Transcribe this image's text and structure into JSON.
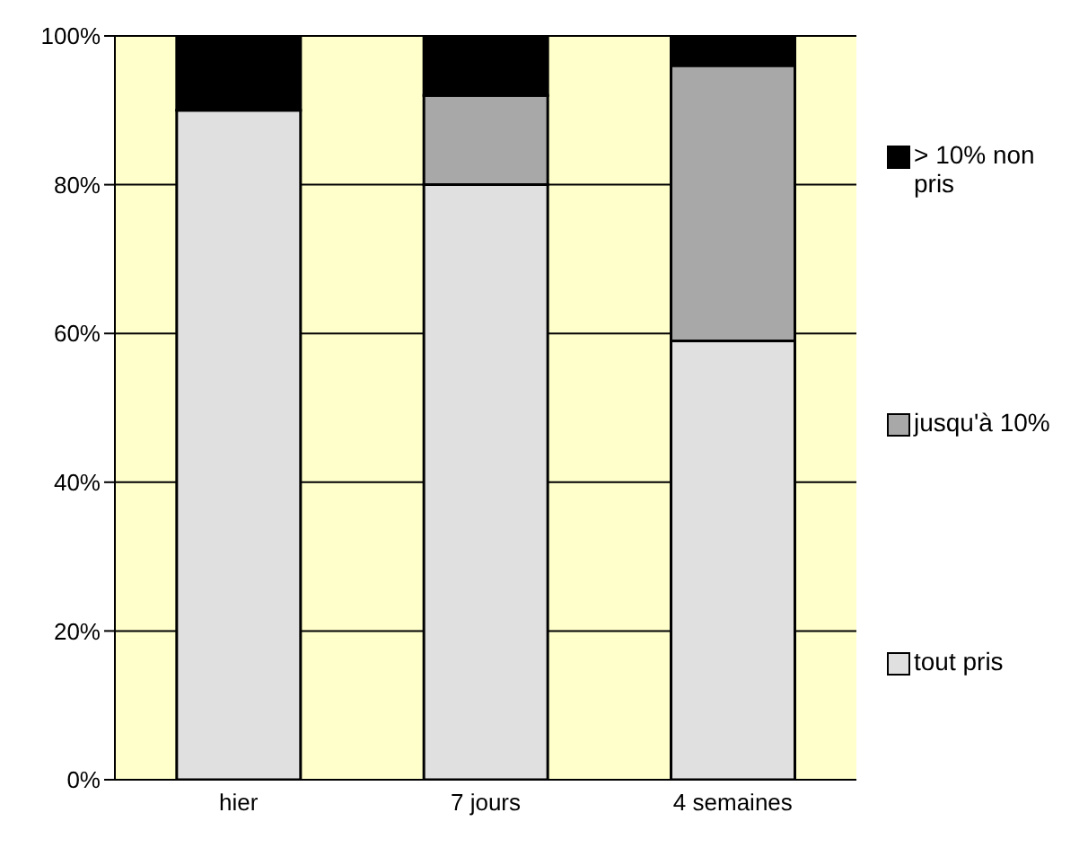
{
  "chart_data": {
    "type": "bar",
    "stacked": true,
    "categories": [
      "hier",
      "7 jours",
      "4 semaines"
    ],
    "series": [
      {
        "name": "tout pris",
        "color": "#e0e0e0",
        "values": [
          90,
          80,
          59
        ]
      },
      {
        "name": "jusqu'à 10%",
        "color": "#a8a8a8",
        "values": [
          0,
          12,
          37
        ]
      },
      {
        "name": "> 10% non pris",
        "color": "#000000",
        "values": [
          10,
          8,
          4
        ]
      }
    ],
    "ylim": [
      0,
      100
    ],
    "yticks": [
      {
        "value": 0,
        "label": "0%"
      },
      {
        "value": 20,
        "label": "20%"
      },
      {
        "value": 40,
        "label": "40%"
      },
      {
        "value": 60,
        "label": "60%"
      },
      {
        "value": 80,
        "label": "80%"
      },
      {
        "value": 100,
        "label": "100%"
      }
    ],
    "grid": "y",
    "legend": "right"
  }
}
